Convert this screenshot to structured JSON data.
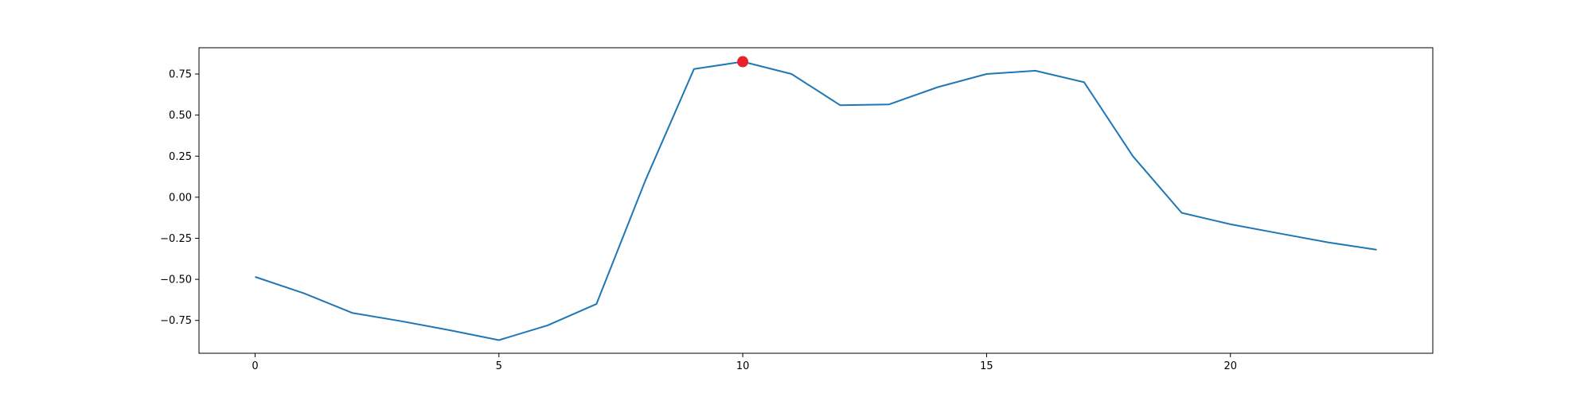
{
  "chart_data": {
    "type": "line",
    "title": "",
    "xlabel": "",
    "ylabel": "",
    "xlim": [
      -1.15,
      24.15
    ],
    "ylim": [
      -0.95,
      0.91
    ],
    "x_ticks": [
      0,
      5,
      10,
      15,
      20
    ],
    "x_tick_labels": [
      "0",
      "5",
      "10",
      "15",
      "20"
    ],
    "y_ticks": [
      0.75,
      0.5,
      0.25,
      0.0,
      -0.25,
      -0.5,
      -0.75
    ],
    "y_tick_labels": [
      "0.75",
      "0.50",
      "0.25",
      "0.00",
      "−0.25",
      "−0.50",
      "−0.75"
    ],
    "grid": false,
    "legend": "none",
    "series": [
      {
        "color": "#1f77b4",
        "x": [
          0,
          1,
          2,
          3,
          4,
          5,
          6,
          7,
          8,
          9,
          10,
          11,
          12,
          13,
          14,
          15,
          16,
          17,
          18,
          19,
          20,
          21,
          22,
          23
        ],
        "y": [
          -0.485,
          -0.585,
          -0.705,
          -0.755,
          -0.81,
          -0.87,
          -0.78,
          -0.65,
          0.1,
          0.78,
          0.825,
          0.75,
          0.56,
          0.565,
          0.67,
          0.75,
          0.77,
          0.7,
          0.25,
          -0.095,
          -0.165,
          -0.22,
          -0.275,
          -0.32
        ]
      }
    ],
    "highlight_point": {
      "x": 10,
      "y": 0.825,
      "color": "#e8202a"
    }
  }
}
